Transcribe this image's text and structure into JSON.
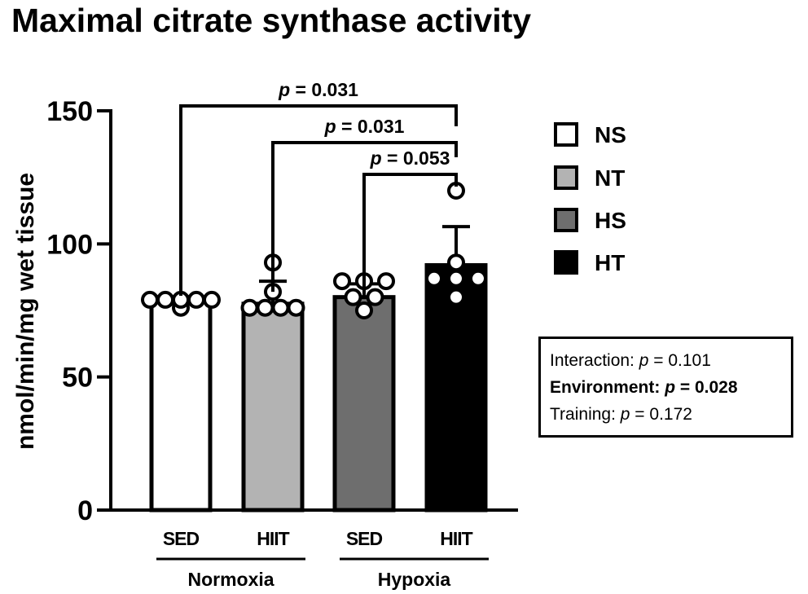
{
  "title": "Maximal citrate synthase activity",
  "chart_data": {
    "type": "bar",
    "ylabel": "nmol/min/mg wet tissue",
    "ylim": [
      0,
      150
    ],
    "yticks": [
      0,
      50,
      100,
      150
    ],
    "categories": [
      "SED",
      "HIIT",
      "SED",
      "HIIT"
    ],
    "groups": [
      {
        "label": "Normoxia",
        "categories": [
          "SED",
          "HIIT"
        ]
      },
      {
        "label": "Hypoxia",
        "categories": [
          "SED",
          "HIIT"
        ]
      }
    ],
    "series": [
      {
        "name": "NS",
        "value": 79,
        "error": 0,
        "color": "#ffffff",
        "points": [
          79,
          79,
          79,
          79,
          79,
          76
        ]
      },
      {
        "name": "NT",
        "value": 77.5,
        "error": 8.5,
        "color": "#b3b3b3",
        "points": [
          93,
          82,
          76,
          76,
          76,
          76
        ]
      },
      {
        "name": "HS",
        "value": 80,
        "error": 5,
        "color": "#6e6e6e",
        "points": [
          86,
          86,
          86,
          80,
          80,
          75
        ]
      },
      {
        "name": "HT",
        "value": 92,
        "error": 14.5,
        "color": "#000000",
        "points": [
          120,
          93,
          87,
          87,
          87,
          80
        ]
      }
    ],
    "comparisons": [
      {
        "from": 0,
        "to": 3,
        "label_prefix": "p",
        "label_value": " = 0.031"
      },
      {
        "from": 1,
        "to": 3,
        "label_prefix": "p",
        "label_value": " = 0.031"
      },
      {
        "from": 2,
        "to": 3,
        "label_prefix": "p",
        "label_value": " = 0.053"
      }
    ],
    "legend": [
      "NS",
      "NT",
      "HS",
      "HT"
    ],
    "legend_position": "right"
  },
  "stats": {
    "interaction_label": "Interaction: ",
    "interaction_p": "p",
    "interaction_value": " = 0.101",
    "environment_label": "Environment: ",
    "environment_p": "p",
    "environment_value": " = 0.028",
    "training_label": "Training: ",
    "training_p": "p",
    "training_value": " = 0.172"
  }
}
